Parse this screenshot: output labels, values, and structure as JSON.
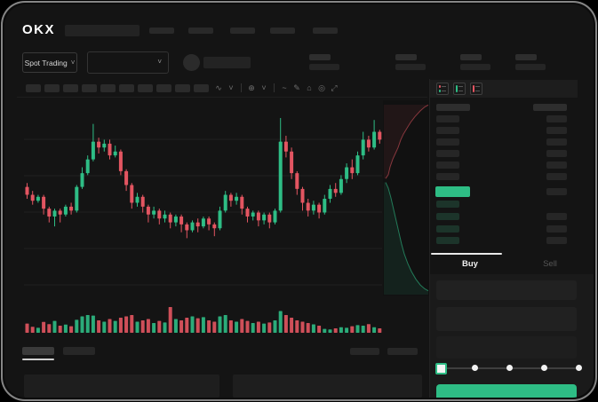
{
  "device": {
    "frame_color": "#9b9b9b",
    "screen_bg": "#141414"
  },
  "header": {
    "logo_text": "OKX",
    "nav_skeleton_count": 5
  },
  "market_bar": {
    "market_selector_label": "Spot Trading",
    "pair_dropdown_value": "",
    "stat_skeleton_groups": 4
  },
  "chart_toolbar": {
    "skeleton_button_count": 10,
    "icons": [
      {
        "name": "candle-style-icon",
        "glyph": "∿"
      },
      {
        "name": "candle-style-chevron-icon",
        "glyph": "˅"
      },
      {
        "divider": true
      },
      {
        "name": "overlay-icon",
        "glyph": "⊕"
      },
      {
        "name": "overlay-chevron-icon",
        "glyph": "˅"
      },
      {
        "divider": true
      },
      {
        "name": "indicator-icon",
        "glyph": "~"
      },
      {
        "name": "draw-icon",
        "glyph": "✎"
      },
      {
        "name": "snapshot-icon",
        "glyph": "⌂"
      },
      {
        "name": "settings-icon",
        "glyph": "◎"
      },
      {
        "name": "fullscreen-icon",
        "glyph": "⤢"
      }
    ]
  },
  "chart_data": {
    "type": "candlestick",
    "title": "",
    "xlabel": "",
    "ylabel": "",
    "axis_labels_visible": false,
    "grid": true,
    "price_scale_note": "normalized 0-100 units (no axis labels rendered in screenshot)",
    "up_color": "#2ebd85",
    "down_color": "#e35561",
    "candles_ochl": [
      [
        56,
        52,
        50,
        58
      ],
      [
        52,
        49,
        47,
        54
      ],
      [
        49,
        51,
        48,
        52
      ],
      [
        51,
        45,
        42,
        52
      ],
      [
        45,
        41,
        38,
        46
      ],
      [
        41,
        44,
        36,
        45
      ],
      [
        44,
        42,
        38,
        45
      ],
      [
        42,
        46,
        41,
        47
      ],
      [
        46,
        44,
        42,
        48
      ],
      [
        44,
        56,
        43,
        57
      ],
      [
        56,
        63,
        55,
        66
      ],
      [
        63,
        70,
        62,
        72
      ],
      [
        70,
        79,
        69,
        88
      ],
      [
        79,
        76,
        73,
        81
      ],
      [
        76,
        78,
        74,
        80
      ],
      [
        78,
        72,
        70,
        80
      ],
      [
        72,
        74,
        71,
        77
      ],
      [
        74,
        64,
        62,
        75
      ],
      [
        64,
        57,
        54,
        65
      ],
      [
        57,
        48,
        45,
        58
      ],
      [
        48,
        51,
        46,
        53
      ],
      [
        51,
        46,
        43,
        52
      ],
      [
        46,
        42,
        38,
        47
      ],
      [
        42,
        44,
        40,
        46
      ],
      [
        44,
        40,
        37,
        45
      ],
      [
        40,
        42,
        38,
        44
      ],
      [
        42,
        38,
        35,
        43
      ],
      [
        38,
        41,
        36,
        42
      ],
      [
        41,
        37,
        33,
        42
      ],
      [
        37,
        34,
        30,
        38
      ],
      [
        34,
        38,
        33,
        39
      ],
      [
        38,
        36,
        33,
        40
      ],
      [
        36,
        40,
        35,
        41
      ],
      [
        40,
        37,
        34,
        41
      ],
      [
        37,
        35,
        31,
        38
      ],
      [
        35,
        44,
        34,
        46
      ],
      [
        44,
        52,
        43,
        54
      ],
      [
        52,
        49,
        46,
        53
      ],
      [
        49,
        51,
        47,
        53
      ],
      [
        51,
        45,
        42,
        52
      ],
      [
        45,
        41,
        38,
        46
      ],
      [
        41,
        43,
        39,
        44
      ],
      [
        43,
        39,
        36,
        44
      ],
      [
        39,
        42,
        37,
        43
      ],
      [
        42,
        38,
        35,
        43
      ],
      [
        38,
        44,
        37,
        45
      ],
      [
        44,
        79,
        43,
        91
      ],
      [
        79,
        74,
        71,
        82
      ],
      [
        74,
        63,
        60,
        76
      ],
      [
        63,
        55,
        52,
        64
      ],
      [
        55,
        48,
        44,
        56
      ],
      [
        48,
        44,
        41,
        50
      ],
      [
        44,
        47,
        42,
        49
      ],
      [
        47,
        43,
        40,
        48
      ],
      [
        43,
        50,
        42,
        52
      ],
      [
        50,
        55,
        48,
        57
      ],
      [
        55,
        53,
        51,
        58
      ],
      [
        53,
        60,
        52,
        62
      ],
      [
        60,
        66,
        58,
        68
      ],
      [
        66,
        63,
        60,
        70
      ],
      [
        63,
        72,
        62,
        74
      ],
      [
        72,
        80,
        70,
        84
      ],
      [
        80,
        76,
        74,
        82
      ],
      [
        76,
        84,
        75,
        90
      ],
      [
        84,
        80,
        78,
        85
      ]
    ],
    "volumes": [
      28,
      16,
      12,
      34,
      26,
      38,
      20,
      24,
      18,
      42,
      55,
      60,
      58,
      40,
      35,
      45,
      38,
      50,
      55,
      60,
      35,
      40,
      45,
      30,
      38,
      32,
      90,
      45,
      40,
      50,
      55,
      48,
      52,
      40,
      35,
      55,
      60,
      40,
      35,
      45,
      38,
      30,
      35,
      28,
      32,
      40,
      75,
      60,
      50,
      40,
      35,
      30,
      25,
      20,
      8,
      6,
      10,
      14,
      12,
      18,
      22,
      20,
      26,
      14,
      10
    ],
    "depth": {
      "asks_line": [
        [
          0.04,
          0.4
        ],
        [
          0.1,
          0.38
        ],
        [
          0.14,
          0.34
        ],
        [
          0.2,
          0.3
        ],
        [
          0.26,
          0.27
        ],
        [
          0.32,
          0.24
        ],
        [
          0.38,
          0.2
        ],
        [
          0.44,
          0.17
        ],
        [
          0.52,
          0.14
        ],
        [
          0.6,
          0.11
        ],
        [
          0.7,
          0.08
        ],
        [
          0.82,
          0.05
        ],
        [
          0.92,
          0.03
        ],
        [
          1,
          0.02
        ]
      ],
      "bids_line": [
        [
          0.04,
          0.42
        ],
        [
          0.1,
          0.45
        ],
        [
          0.16,
          0.5
        ],
        [
          0.22,
          0.56
        ],
        [
          0.28,
          0.62
        ],
        [
          0.34,
          0.68
        ],
        [
          0.4,
          0.74
        ],
        [
          0.46,
          0.79
        ],
        [
          0.54,
          0.84
        ],
        [
          0.62,
          0.88
        ],
        [
          0.72,
          0.92
        ],
        [
          0.82,
          0.95
        ],
        [
          0.92,
          0.97
        ],
        [
          1,
          0.98
        ]
      ]
    }
  },
  "order_book": {
    "view_modes": [
      "book-combined",
      "book-bids-only",
      "book-asks-only"
    ],
    "ask_skeleton_rows": 6,
    "bid_skeleton_rows": 4,
    "last_price_bar_color": "#2ebd85"
  },
  "trade_panel": {
    "buy_tab_label": "Buy",
    "sell_tab_label": "Sell",
    "active_tab": "Buy",
    "form_skeleton_fields": 3,
    "slider": {
      "stops": 5,
      "selected_index": 0,
      "handle_color": "#2ebd85"
    },
    "submit_label": "",
    "submit_color": "#2ebd85"
  },
  "bottom_bar": {
    "tab_skeleton_count": 2,
    "right_skeleton_count": 2,
    "panel_count": 2
  },
  "colors": {
    "up": "#2ebd85",
    "down": "#e35561",
    "skeleton": "#2a2a2a"
  }
}
